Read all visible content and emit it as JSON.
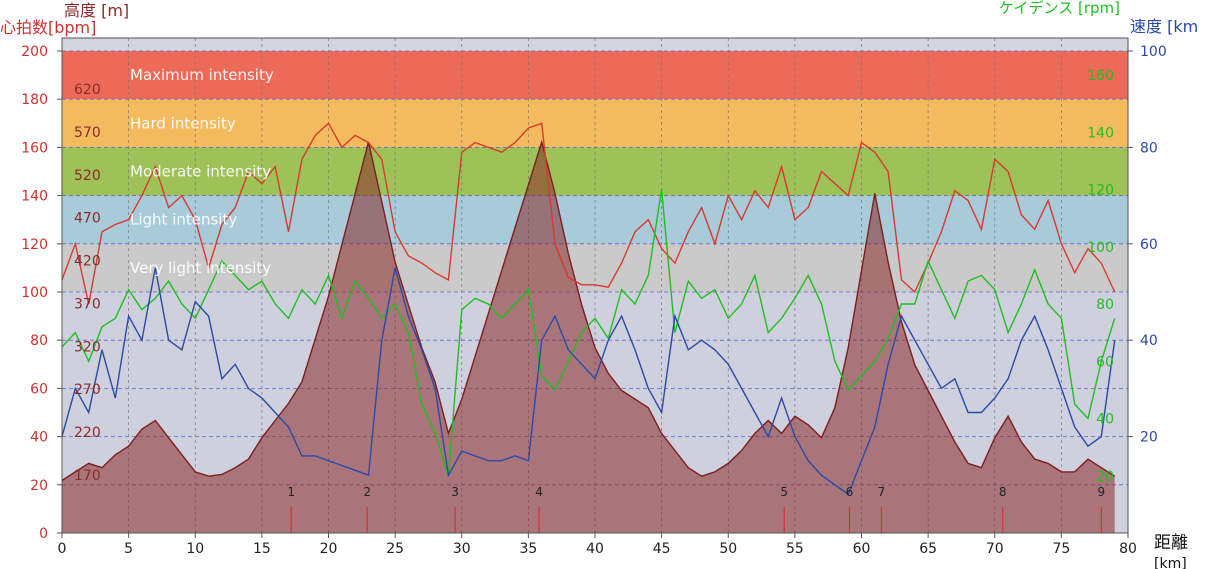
{
  "chart_data": {
    "type": "line",
    "title": "",
    "xlabel": "距離",
    "xlabel_unit": "[km]",
    "xlim": [
      0,
      80
    ],
    "x_ticks": [
      0,
      5,
      10,
      15,
      20,
      25,
      30,
      35,
      40,
      45,
      50,
      55,
      60,
      65,
      70,
      75,
      80
    ],
    "axes": {
      "heart_rate": {
        "label": "心拍数[bpm]",
        "range": [
          0,
          200
        ],
        "ticks": [
          0,
          20,
          40,
          60,
          80,
          100,
          120,
          140,
          160,
          180,
          200
        ],
        "color": "#d03030"
      },
      "altitude": {
        "label": "高度 [m]",
        "ticks": [
          170,
          220,
          270,
          320,
          370,
          420,
          470,
          520,
          570,
          620
        ],
        "color": "#8a2a2a"
      },
      "cadence": {
        "label": "ケイデンス [rpm]",
        "range": [
          0,
          160
        ],
        "ticks": [
          20,
          40,
          60,
          80,
          100,
          120,
          140,
          160
        ],
        "color": "#1fbf1f"
      },
      "speed": {
        "label": "速度 [km",
        "range": [
          0,
          100
        ],
        "ticks": [
          20,
          40,
          60,
          80,
          100
        ],
        "color": "#2a4aa8"
      }
    },
    "zones": [
      {
        "label": "Maximum intensity",
        "hr_range": [
          180,
          200
        ],
        "color": "#ee6450"
      },
      {
        "label": "Hard intensity",
        "hr_range": [
          160,
          180
        ],
        "color": "#f5b856"
      },
      {
        "label": "Moderate intensity",
        "hr_range": [
          140,
          160
        ],
        "color": "#9bc050"
      },
      {
        "label": "Light intensity",
        "hr_range": [
          120,
          140
        ],
        "color": "#a6c9d8"
      },
      {
        "label": "Very light intensity",
        "hr_range": [
          100,
          120
        ],
        "color": "#c9c9c9"
      },
      {
        "label": "",
        "hr_range": [
          0,
          100
        ],
        "color": "#cfd0dc"
      }
    ],
    "laps": [
      {
        "label": "1",
        "x": 17.2
      },
      {
        "label": "2",
        "x": 22.9
      },
      {
        "label": "3",
        "x": 29.5
      },
      {
        "label": "4",
        "x": 35.8
      },
      {
        "label": "5",
        "x": 54.2
      },
      {
        "label": "6",
        "x": 59.1
      },
      {
        "label": "7",
        "x": 61.5
      },
      {
        "label": "8",
        "x": 70.6
      },
      {
        "label": "9",
        "x": 78.0
      }
    ],
    "series": [
      {
        "name": "高度",
        "unit": "m",
        "axis": "altitude",
        "x": [
          0,
          1,
          2,
          3,
          4,
          5,
          6,
          7,
          8,
          9,
          10,
          11,
          12,
          13,
          14,
          15,
          16,
          17,
          18,
          19,
          20,
          21,
          22,
          23,
          24,
          25,
          26,
          27,
          28,
          29,
          30,
          31,
          32,
          33,
          34,
          35,
          36,
          37,
          38,
          39,
          40,
          41,
          42,
          43,
          44,
          45,
          46,
          47,
          48,
          49,
          50,
          51,
          52,
          53,
          54,
          55,
          56,
          57,
          58,
          59,
          60,
          61,
          62,
          63,
          64,
          65,
          66,
          67,
          68,
          69,
          70,
          71,
          72,
          73,
          74,
          75,
          76,
          77,
          78,
          79
        ],
        "y": [
          175,
          185,
          195,
          190,
          205,
          215,
          235,
          245,
          225,
          205,
          185,
          180,
          182,
          190,
          200,
          225,
          245,
          265,
          290,
          340,
          390,
          450,
          510,
          570,
          500,
          430,
          380,
          330,
          290,
          230,
          270,
          320,
          370,
          420,
          470,
          520,
          570,
          510,
          440,
          380,
          330,
          300,
          280,
          270,
          260,
          230,
          210,
          190,
          180,
          185,
          195,
          210,
          230,
          245,
          230,
          250,
          240,
          225,
          260,
          330,
          420,
          510,
          430,
          360,
          310,
          280,
          250,
          220,
          195,
          190,
          225,
          250,
          220,
          200,
          195,
          185,
          185,
          200,
          190,
          180
        ]
      },
      {
        "name": "心拍数",
        "unit": "bpm",
        "axis": "heart_rate",
        "x": [
          0,
          1,
          2,
          3,
          4,
          5,
          6,
          7,
          8,
          9,
          10,
          11,
          12,
          13,
          14,
          15,
          16,
          17,
          18,
          19,
          20,
          21,
          22,
          23,
          24,
          25,
          26,
          27,
          28,
          29,
          30,
          31,
          32,
          33,
          34,
          35,
          36,
          37,
          38,
          39,
          40,
          41,
          42,
          43,
          44,
          45,
          46,
          47,
          48,
          49,
          50,
          51,
          52,
          53,
          54,
          55,
          56,
          57,
          58,
          59,
          60,
          61,
          62,
          63,
          64,
          65,
          66,
          67,
          68,
          69,
          70,
          71,
          72,
          73,
          74,
          75,
          76,
          77,
          78,
          79
        ],
        "y": [
          105,
          120,
          95,
          125,
          128,
          130,
          140,
          152,
          135,
          140,
          130,
          110,
          128,
          135,
          150,
          145,
          152,
          125,
          155,
          165,
          170,
          160,
          165,
          162,
          155,
          125,
          115,
          112,
          108,
          105,
          158,
          162,
          160,
          158,
          162,
          168,
          170,
          120,
          106,
          103,
          103,
          102,
          112,
          125,
          130,
          118,
          112,
          125,
          135,
          120,
          140,
          130,
          142,
          135,
          152,
          130,
          135,
          150,
          145,
          140,
          162,
          158,
          150,
          105,
          100,
          112,
          125,
          142,
          138,
          126,
          155,
          150,
          132,
          126,
          138,
          120,
          108,
          118,
          112,
          100
        ]
      },
      {
        "name": "ケイデンス",
        "unit": "rpm",
        "axis": "cadence",
        "x": [
          0,
          1,
          2,
          3,
          4,
          5,
          6,
          7,
          8,
          9,
          10,
          11,
          12,
          13,
          14,
          15,
          16,
          17,
          18,
          19,
          20,
          21,
          22,
          23,
          24,
          25,
          26,
          27,
          28,
          29,
          30,
          31,
          32,
          33,
          34,
          35,
          36,
          37,
          38,
          39,
          40,
          41,
          42,
          43,
          44,
          45,
          46,
          47,
          48,
          49,
          50,
          51,
          52,
          53,
          54,
          55,
          56,
          57,
          58,
          59,
          60,
          61,
          62,
          63,
          64,
          65,
          66,
          67,
          68,
          69,
          70,
          71,
          72,
          73,
          74,
          75,
          76,
          77,
          78,
          79
        ],
        "y": [
          65,
          70,
          60,
          72,
          75,
          85,
          78,
          82,
          88,
          80,
          75,
          85,
          95,
          90,
          85,
          88,
          80,
          75,
          85,
          80,
          90,
          75,
          88,
          82,
          75,
          80,
          70,
          45,
          35,
          20,
          78,
          82,
          80,
          75,
          80,
          85,
          55,
          50,
          60,
          70,
          75,
          68,
          85,
          80,
          90,
          120,
          70,
          88,
          82,
          85,
          75,
          80,
          90,
          70,
          75,
          82,
          90,
          80,
          60,
          50,
          55,
          60,
          68,
          80,
          80,
          95,
          85,
          75,
          88,
          90,
          85,
          70,
          80,
          92,
          80,
          75,
          45,
          40,
          60,
          75
        ]
      },
      {
        "name": "速度",
        "unit": "km/h",
        "axis": "speed",
        "x": [
          0,
          1,
          2,
          3,
          4,
          5,
          6,
          7,
          8,
          9,
          10,
          11,
          12,
          13,
          14,
          15,
          16,
          17,
          18,
          19,
          20,
          21,
          22,
          23,
          24,
          25,
          26,
          27,
          28,
          29,
          30,
          31,
          32,
          33,
          34,
          35,
          36,
          37,
          38,
          39,
          40,
          41,
          42,
          43,
          44,
          45,
          46,
          47,
          48,
          49,
          50,
          51,
          52,
          53,
          54,
          55,
          56,
          57,
          58,
          59,
          60,
          61,
          62,
          63,
          64,
          65,
          66,
          67,
          68,
          69,
          70,
          71,
          72,
          73,
          74,
          75,
          76,
          77,
          78,
          79
        ],
        "y": [
          20,
          30,
          25,
          38,
          28,
          45,
          40,
          55,
          40,
          38,
          48,
          45,
          32,
          35,
          30,
          28,
          25,
          22,
          16,
          16,
          15,
          14,
          13,
          12,
          40,
          55,
          45,
          38,
          30,
          12,
          17,
          16,
          15,
          15,
          16,
          15,
          40,
          45,
          38,
          35,
          32,
          40,
          45,
          38,
          30,
          25,
          45,
          38,
          40,
          38,
          35,
          30,
          25,
          20,
          28,
          20,
          15,
          12,
          10,
          8,
          15,
          22,
          35,
          45,
          40,
          35,
          30,
          32,
          25,
          25,
          28,
          32,
          40,
          45,
          38,
          30,
          22,
          18,
          20,
          40
        ]
      }
    ]
  }
}
